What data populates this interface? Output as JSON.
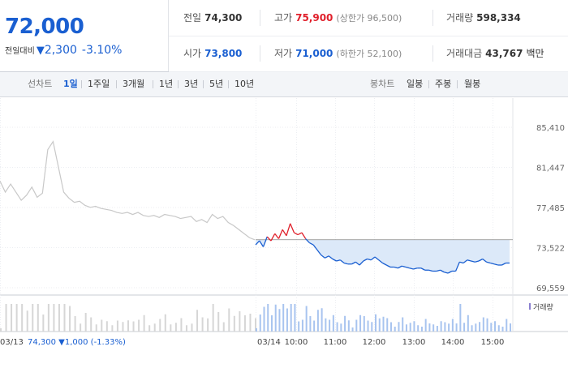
{
  "summary": {
    "current_price": "72,000",
    "change_label": "전일대비",
    "change_arrow": "▼",
    "change_value": "2,300",
    "change_pct": "-3.10%"
  },
  "stats": {
    "prev_close": {
      "label": "전일",
      "value": "74,300"
    },
    "high": {
      "label": "고가",
      "value": "75,900",
      "sub": "(상한가 96,500)"
    },
    "volume": {
      "label": "거래량",
      "value": "598,334"
    },
    "open": {
      "label": "시가",
      "value": "73,800"
    },
    "low": {
      "label": "저가",
      "value": "71,000",
      "sub": "(하한가 52,100)"
    },
    "amount": {
      "label": "거래대금",
      "value": "43,767",
      "unit": "백만"
    }
  },
  "tabs": {
    "line_label": "선차트",
    "line_tabs": [
      "1일",
      "1주일",
      "3개월",
      "1년",
      "3년",
      "5년",
      "10년"
    ],
    "active_index": 0,
    "candle_label": "봉차트",
    "candle_tabs": [
      "일봉",
      "주봉",
      "월봉"
    ]
  },
  "colors": {
    "up": "#e0202b",
    "down": "#1a5fd1",
    "prev_day_line": "#c8c8c8",
    "fill": "#dce9f9"
  },
  "chart_data": {
    "type": "line",
    "y_ticks": [
      "85,410",
      "81,447",
      "77,485",
      "73,522",
      "69,559"
    ],
    "ylim": [
      69559,
      85410
    ],
    "reference_price": 74300,
    "legend": "거래량",
    "x_ticks": [
      "03/13",
      "03/14",
      "10:00",
      "11:00",
      "12:00",
      "13:00",
      "14:00",
      "15:00"
    ],
    "prev_day_caption": "03/13  74,300 ▼1,000 (-1.33%)",
    "series": [
      {
        "name": "03/13",
        "values": [
          80100,
          79000,
          79800,
          79000,
          78200,
          78700,
          79500,
          78500,
          78900,
          83200,
          84000,
          81500,
          79000,
          78400,
          78000,
          78100,
          77700,
          77500,
          77600,
          77400,
          77300,
          77200,
          77000,
          76900,
          77000,
          76800,
          77000,
          76700,
          76600,
          76700,
          76500,
          76800,
          76700,
          76600,
          76400,
          76500,
          76600,
          76100,
          76300,
          76000,
          76800,
          76400,
          76600,
          76000,
          75700,
          75300,
          74900,
          74500,
          74300
        ]
      },
      {
        "name": "03/14",
        "values": [
          73800,
          74200,
          73600,
          74600,
          74200,
          74900,
          74400,
          75300,
          74700,
          75900,
          75000,
          74800,
          75000,
          74400,
          74000,
          73800,
          73300,
          72800,
          72500,
          72700,
          72400,
          72200,
          72300,
          72000,
          71900,
          71900,
          72100,
          71800,
          72200,
          72400,
          72300,
          72600,
          72300,
          72000,
          71800,
          71600,
          71600,
          71500,
          71700,
          71600,
          71500,
          71400,
          71500,
          71500,
          71300,
          71300,
          71200,
          71200,
          71300,
          71100,
          71000,
          71200,
          71200,
          72100,
          72000,
          72300,
          72200,
          72100,
          72200,
          72400,
          72100,
          72000,
          71900,
          71800,
          71800,
          72000,
          72000
        ]
      }
    ]
  }
}
